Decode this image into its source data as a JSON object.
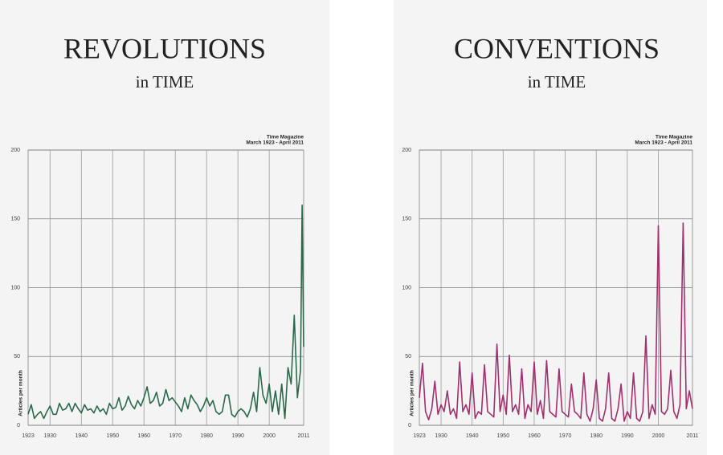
{
  "chart_data": [
    {
      "type": "line",
      "title": "REVOLUTIONS",
      "subtitle": "in TIME",
      "source": [
        "Time Magazine",
        "March 1923 - April 2011"
      ],
      "y_label": "Articles per month",
      "xlim": [
        1923,
        2011
      ],
      "xticks": [
        1923,
        1930,
        1940,
        1950,
        1960,
        1970,
        1980,
        1990,
        2000,
        2011
      ],
      "ylim": [
        0,
        200
      ],
      "yticks": [
        0,
        50,
        100,
        150,
        200
      ],
      "grid": true,
      "x": [
        1923,
        1924,
        1925,
        1926,
        1927,
        1928,
        1929,
        1930,
        1931,
        1932,
        1933,
        1934,
        1935,
        1936,
        1937,
        1938,
        1939,
        1940,
        1941,
        1942,
        1943,
        1944,
        1945,
        1946,
        1947,
        1948,
        1949,
        1950,
        1951,
        1952,
        1953,
        1954,
        1955,
        1956,
        1957,
        1958,
        1959,
        1960,
        1961,
        1962,
        1963,
        1964,
        1965,
        1966,
        1967,
        1968,
        1969,
        1970,
        1971,
        1972,
        1973,
        1974,
        1975,
        1976,
        1977,
        1978,
        1979,
        1980,
        1981,
        1982,
        1983,
        1984,
        1985,
        1986,
        1987,
        1988,
        1989,
        1990,
        1991,
        1992,
        1993,
        1994,
        1995,
        1996,
        1997,
        1998,
        1999,
        2000,
        2001,
        2002,
        2003,
        2004,
        2005,
        2006,
        2007,
        2008,
        2009,
        2010,
        2010.5,
        2011
      ],
      "series": [
        {
          "name": "Revolutions",
          "color": "#2a6a4a",
          "values": [
            8,
            15,
            5,
            8,
            10,
            5,
            10,
            14,
            8,
            8,
            16,
            11,
            12,
            16,
            10,
            16,
            12,
            9,
            15,
            11,
            12,
            9,
            14,
            10,
            12,
            8,
            16,
            12,
            13,
            20,
            11,
            14,
            21,
            15,
            12,
            18,
            14,
            20,
            28,
            16,
            18,
            24,
            14,
            16,
            26,
            18,
            20,
            17,
            14,
            10,
            20,
            12,
            22,
            18,
            15,
            10,
            14,
            20,
            14,
            18,
            10,
            8,
            10,
            22,
            22,
            8,
            6,
            10,
            12,
            10,
            6,
            12,
            24,
            10,
            42,
            22,
            16,
            30,
            10,
            25,
            8,
            30,
            5,
            42,
            30,
            80,
            20,
            40,
            160,
            57
          ]
        }
      ]
    },
    {
      "type": "line",
      "title": "CONVENTIONS",
      "subtitle": "in TIME",
      "source": [
        "Time Magazine",
        "March 1923 - April 2011"
      ],
      "y_label": "Articles per month",
      "xlim": [
        1923,
        2011
      ],
      "xticks": [
        1923,
        1930,
        1940,
        1950,
        1960,
        1970,
        1980,
        1990,
        2000,
        2011
      ],
      "ylim": [
        0,
        200
      ],
      "yticks": [
        0,
        50,
        100,
        150,
        200
      ],
      "grid": true,
      "x": [
        1923,
        1924,
        1925,
        1926,
        1927,
        1928,
        1929,
        1930,
        1931,
        1932,
        1933,
        1934,
        1935,
        1936,
        1937,
        1938,
        1939,
        1940,
        1941,
        1942,
        1943,
        1944,
        1945,
        1946,
        1947,
        1948,
        1949,
        1950,
        1951,
        1952,
        1953,
        1954,
        1955,
        1956,
        1957,
        1958,
        1959,
        1960,
        1961,
        1962,
        1963,
        1964,
        1965,
        1966,
        1967,
        1968,
        1969,
        1970,
        1971,
        1972,
        1973,
        1974,
        1975,
        1976,
        1977,
        1978,
        1979,
        1980,
        1981,
        1982,
        1983,
        1984,
        1985,
        1986,
        1987,
        1988,
        1989,
        1990,
        1991,
        1992,
        1993,
        1994,
        1995,
        1996,
        1997,
        1998,
        1999,
        2000,
        2001,
        2002,
        2003,
        2004,
        2005,
        2006,
        2007,
        2008,
        2009,
        2010,
        2011
      ],
      "series": [
        {
          "name": "Conventions",
          "color": "#a0306e",
          "values": [
            20,
            45,
            10,
            4,
            12,
            32,
            8,
            15,
            10,
            25,
            8,
            12,
            5,
            46,
            10,
            15,
            8,
            38,
            5,
            10,
            8,
            44,
            10,
            8,
            6,
            59,
            10,
            22,
            8,
            51,
            10,
            15,
            8,
            41,
            5,
            15,
            10,
            46,
            8,
            18,
            5,
            47,
            10,
            8,
            6,
            41,
            10,
            8,
            6,
            30,
            10,
            8,
            5,
            38,
            8,
            3,
            12,
            33,
            5,
            3,
            12,
            38,
            5,
            3,
            12,
            30,
            3,
            10,
            5,
            38,
            5,
            3,
            10,
            65,
            5,
            15,
            8,
            145,
            10,
            8,
            12,
            40,
            10,
            5,
            15,
            147,
            12,
            25,
            12
          ]
        }
      ]
    }
  ]
}
